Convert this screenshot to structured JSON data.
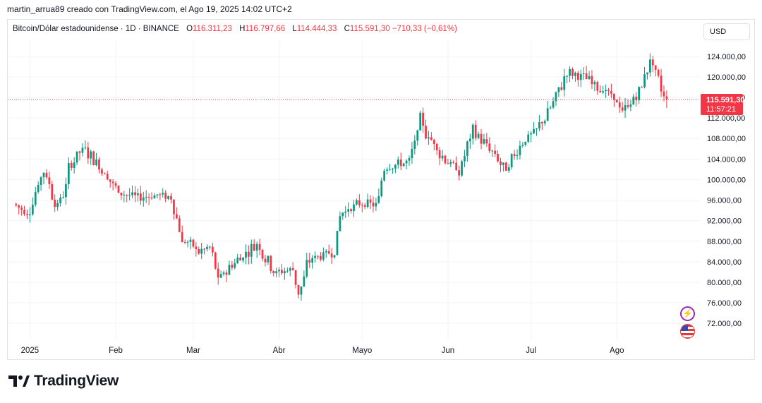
{
  "attribution": "martin_arrua89 creado con TradingView.com, el Ago 19, 2025 14:02 UTC+2",
  "legend": {
    "symbol": "Bitcoin/Dólar estadounidense · 1D · BINANCE",
    "o_label": "O",
    "o_value": "116.311,23",
    "h_label": "H",
    "h_value": "116.797,66",
    "l_label": "L",
    "l_value": "114.444,33",
    "c_label": "C",
    "c_value": "115.591,30 −710,33 (−0,61%)"
  },
  "currency_button": "USD",
  "price_tag": {
    "price": "115.591,30",
    "countdown": "11:57:21"
  },
  "brand": "TradingView",
  "colors": {
    "up": "#089981",
    "down": "#f23645",
    "grid": "#f0f3fa",
    "text": "#131722"
  },
  "icons": [
    "lightning-icon",
    "us-flag-icon"
  ],
  "chart_data": {
    "type": "candlestick",
    "symbol": "Bitcoin/Dólar estadounidense",
    "interval": "1D",
    "exchange": "BINANCE",
    "y_axis": {
      "range": [
        69000,
        127000
      ],
      "ticks": [
        "124.000,00",
        "120.000,00",
        "116.000,00",
        "112.000,00",
        "108.000,00",
        "104.000,00",
        "100.000,00",
        "96.000,00",
        "92.000,00",
        "88.000,00",
        "84.000,00",
        "80.000,00",
        "76.000,00",
        "72.000,00"
      ],
      "tick_values": [
        124000,
        120000,
        116000,
        112000,
        108000,
        104000,
        100000,
        96000,
        92000,
        88000,
        84000,
        80000,
        76000,
        72000
      ]
    },
    "x_axis": {
      "labels": [
        "2025",
        "Feb",
        "Mar",
        "Abr",
        "Mayo",
        "Jun",
        "Jul",
        "Ago"
      ],
      "dates": [
        "2025-01-01",
        "2025-02-01",
        "2025-03-01",
        "2025-04-01",
        "2025-05-01",
        "2025-06-01",
        "2025-07-01",
        "2025-08-01"
      ],
      "range": [
        "2024-12-24",
        "2025-08-31"
      ]
    },
    "last_price": 115591.3,
    "grid": true,
    "weekly_closes": [
      [
        "2024-12-26",
        95300
      ],
      [
        "2024-12-31",
        93500
      ],
      [
        "2025-01-06",
        102000
      ],
      [
        "2025-01-11",
        94500
      ],
      [
        "2025-01-17",
        104500
      ],
      [
        "2025-01-21",
        106000
      ],
      [
        "2025-01-27",
        102000
      ],
      [
        "2025-02-02",
        97500
      ],
      [
        "2025-02-09",
        96500
      ],
      [
        "2025-02-16",
        97000
      ],
      [
        "2025-02-21",
        96500
      ],
      [
        "2025-02-25",
        88500
      ],
      [
        "2025-03-03",
        86000
      ],
      [
        "2025-03-07",
        86800
      ],
      [
        "2025-03-10",
        80500
      ],
      [
        "2025-03-16",
        84000
      ],
      [
        "2025-03-24",
        87500
      ],
      [
        "2025-03-31",
        82000
      ],
      [
        "2025-04-06",
        82500
      ],
      [
        "2025-04-08",
        77500
      ],
      [
        "2025-04-12",
        84500
      ],
      [
        "2025-04-21",
        86000
      ],
      [
        "2025-04-23",
        93500
      ],
      [
        "2025-05-01",
        95500
      ],
      [
        "2025-05-06",
        95000
      ],
      [
        "2025-05-09",
        102500
      ],
      [
        "2025-05-18",
        103500
      ],
      [
        "2025-05-22",
        111000
      ],
      [
        "2025-05-30",
        104500
      ],
      [
        "2025-06-05",
        101500
      ],
      [
        "2025-06-10",
        109500
      ],
      [
        "2025-06-16",
        106000
      ],
      [
        "2025-06-22",
        101500
      ],
      [
        "2025-06-27",
        107000
      ],
      [
        "2025-07-03",
        109500
      ],
      [
        "2025-07-10",
        116000
      ],
      [
        "2025-07-14",
        121000
      ],
      [
        "2025-07-22",
        119500
      ],
      [
        "2025-07-31",
        115800
      ],
      [
        "2025-08-03",
        113000
      ],
      [
        "2025-08-09",
        117000
      ],
      [
        "2025-08-13",
        123400
      ],
      [
        "2025-08-17",
        117500
      ],
      [
        "2025-08-19",
        115591
      ]
    ]
  }
}
